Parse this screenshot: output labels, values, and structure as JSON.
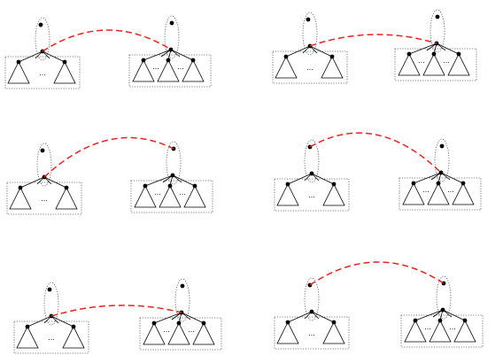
{
  "figure": {
    "description_visible_text": "",
    "panel_count": 6,
    "ellipsis_label": "...",
    "colors": {
      "edge": "#000000",
      "node": "#000000",
      "dotted_box": "#555555",
      "link": "#e8231d"
    }
  },
  "panels": [
    {
      "id": "panel-1",
      "link_from": "left-root-node",
      "link_to": "right-root-node"
    },
    {
      "id": "panel-2",
      "link_from": "left-root-node",
      "link_to": "right-root-node"
    },
    {
      "id": "panel-3",
      "link_from": "left-root-node",
      "link_to": "right-top-node"
    },
    {
      "id": "panel-4",
      "link_from": "left-top-node",
      "link_to": "right-root-node"
    },
    {
      "id": "panel-5",
      "link_from": "left-root-node",
      "link_to": "right-root-node"
    },
    {
      "id": "panel-6",
      "link_from": "left-top-node",
      "link_to": "right-top-node"
    }
  ]
}
